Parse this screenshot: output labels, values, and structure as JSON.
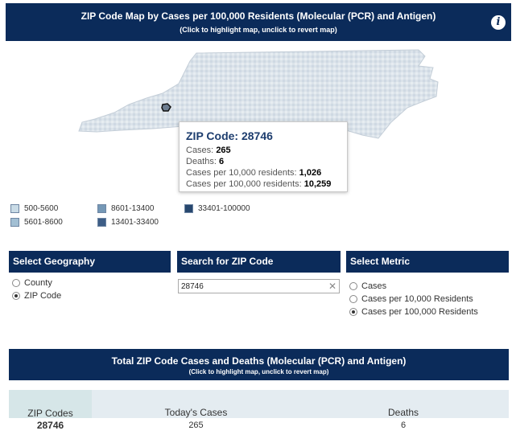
{
  "header": {
    "title": "ZIP Code Map by Cases per 100,000 Residents (Molecular (PCR) and Antigen)",
    "subtitle": "(Click to highlight map, unclick to revert map)",
    "info_icon": "info-icon"
  },
  "tooltip": {
    "title": "ZIP Code: 28746",
    "cases_label": "Cases:",
    "cases_value": "265",
    "deaths_label": "Deaths:",
    "deaths_value": "6",
    "per10k_label": "Cases per 10,000 residents:",
    "per10k_value": "1,026",
    "per100k_label": "Cases per 100,000 residents:",
    "per100k_value": "10,259"
  },
  "legend": [
    {
      "label": "500-5600",
      "color": "#c9dbe6"
    },
    {
      "label": "5601-8600",
      "color": "#a2bfd3"
    },
    {
      "label": "8601-13400",
      "color": "#7598b6"
    },
    {
      "label": "13401-33400",
      "color": "#3d5d86"
    },
    {
      "label": "33401-100000",
      "color": "#27476e"
    }
  ],
  "geography": {
    "header": "Select Geography",
    "options": [
      {
        "label": "County",
        "checked": false
      },
      {
        "label": "ZIP Code",
        "checked": true
      }
    ]
  },
  "search": {
    "header": "Search for ZIP Code",
    "value": "28746",
    "clear_icon": "close-icon"
  },
  "metric": {
    "header": "Select Metric",
    "options": [
      {
        "label": "Cases",
        "checked": false
      },
      {
        "label": "Cases per 10,000 Residents",
        "checked": false
      },
      {
        "label": "Cases per 100,000 Residents",
        "checked": true
      }
    ]
  },
  "table": {
    "title": "Total ZIP Code Cases and Deaths (Molecular (PCR) and Antigen)",
    "subtitle": "(Click to highlight map, unclick to revert map)",
    "columns": [
      "ZIP Codes",
      "Today's Cases",
      "Deaths"
    ],
    "rows": [
      [
        "28746",
        "265",
        "6"
      ]
    ]
  },
  "colors": {
    "navy": "#0b2b5a",
    "map_fill": "#dde5ec",
    "highlight": "#1d3d6e"
  }
}
